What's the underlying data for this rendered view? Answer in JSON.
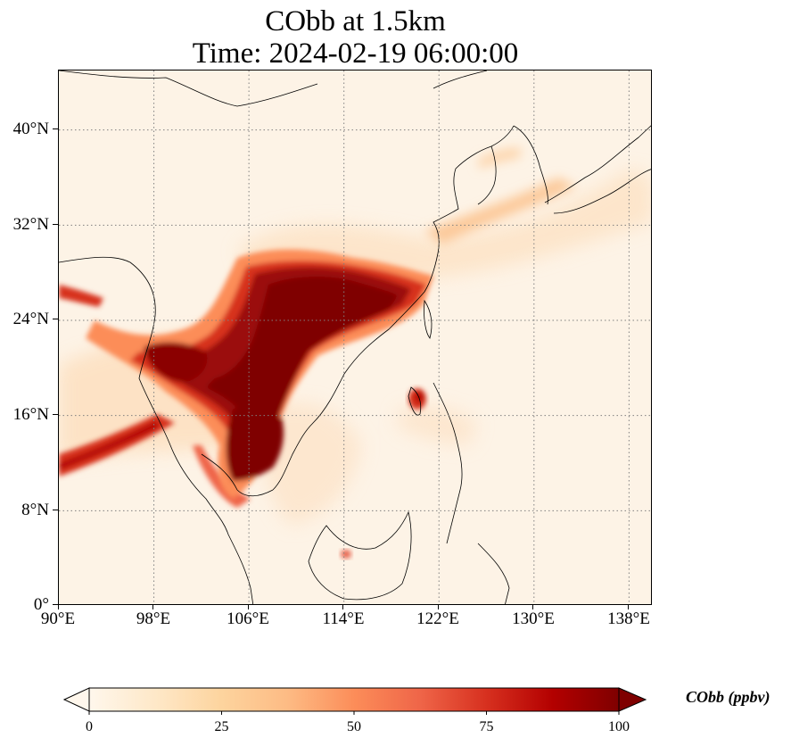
{
  "title": {
    "line1": "CObb at 1.5km",
    "line2": "Time: 2024-02-19 06:00:00"
  },
  "map": {
    "projection": "PlateCarree",
    "extent": {
      "lon_min": 90,
      "lon_max": 140,
      "lat_min": 0,
      "lat_max": 45
    },
    "gridlines": {
      "style": "dotted",
      "color": "#808080"
    },
    "coastlines": "black",
    "x_ticks": [
      "90°E",
      "98°E",
      "106°E",
      "114°E",
      "122°E",
      "130°E",
      "138°E"
    ],
    "y_ticks": [
      "0°",
      "8°N",
      "16°N",
      "24°N",
      "32°N",
      "40°N"
    ]
  },
  "colorbar": {
    "label": "CObb (ppbv)",
    "colormap": "OrRd",
    "extend": "both",
    "min": 0,
    "max": 100,
    "ticks": [
      "0",
      "25",
      "50",
      "75",
      "100"
    ],
    "colors": [
      "#fff7ec",
      "#fee8c8",
      "#fdd49e",
      "#fdbb84",
      "#fc8d59",
      "#ef6548",
      "#d7301f",
      "#b30000",
      "#7f0000"
    ]
  }
}
